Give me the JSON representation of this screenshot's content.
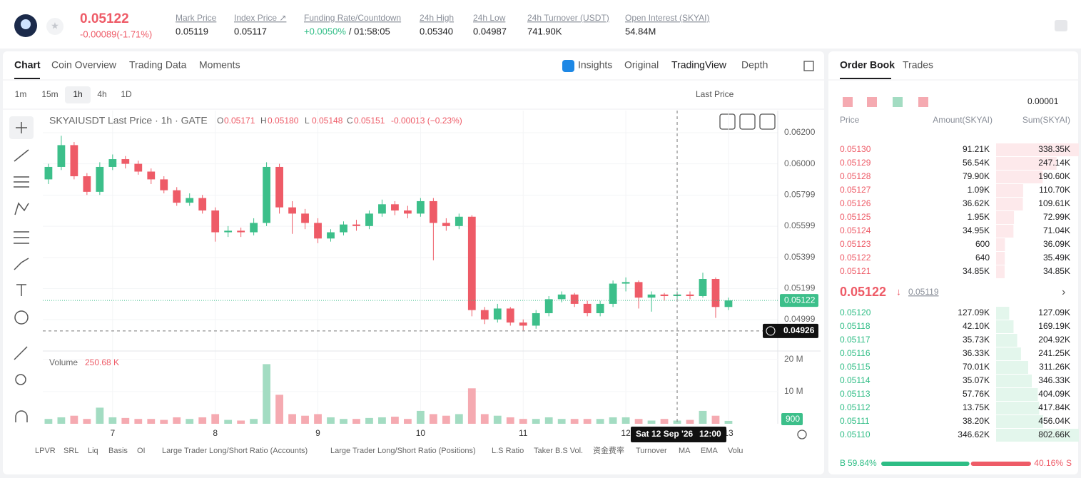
{
  "header": {
    "price": "0.05122",
    "change": "-0.00089(-1.71%)",
    "stats": [
      {
        "label": "Mark Price",
        "value": "0.05119"
      },
      {
        "label": "Index Price ↗",
        "value": "0.05117"
      },
      {
        "label": "Funding Rate/Countdown",
        "value": "+0.0050%",
        "countdown": "/ 01:58:05"
      },
      {
        "label": "24h High",
        "value": "0.05340"
      },
      {
        "label": "24h Low",
        "value": "0.04987"
      },
      {
        "label": "24h Turnover (USDT)",
        "value": "741.90K"
      },
      {
        "label": "Open Interest (SKYAI)",
        "value": "54.84M"
      }
    ]
  },
  "chart_tabs": [
    "Chart",
    "Coin Overview",
    "Trading Data",
    "Moments"
  ],
  "view_tabs": [
    "Insights",
    "Original",
    "TradingView",
    "Depth"
  ],
  "intervals": [
    "1m",
    "15m",
    "1h",
    "4h",
    "1D"
  ],
  "price_type": "Last Price",
  "indicators": [
    "LPVR",
    "SRL",
    "Liq",
    "Basis",
    "OI",
    "Large Trader Long/Short Ratio (Accounts)",
    "Large Trader Long/Short Ratio (Positions)",
    "L.S Ratio",
    "Taker B.S Vol.",
    "资金费率",
    "Turnover",
    "MA",
    "EMA",
    "Volu"
  ],
  "chart_data": {
    "type": "candlestick",
    "title": "SKYAIUSDT Last Price · 1h · GATE",
    "legend": [
      {
        "key": "O",
        "value": "0.05171"
      },
      {
        "key": "H",
        "value": "0.05180"
      },
      {
        "key": "L",
        "value": "0.05148"
      },
      {
        "key": "C",
        "value": "0.05151"
      }
    ],
    "legend_change": "-0.00013 (−0.23%)",
    "up_color": "#3cbf8a",
    "down_color": "#ee5b67",
    "up_volume_color": "#a3dcc2",
    "down_volume_color": "#f5aab1",
    "xlim": [
      6.32,
      13.48
    ],
    "xticks": [
      7,
      8,
      9,
      10,
      11,
      12,
      13
    ],
    "ylim": [
      0.04797,
      0.06342
    ],
    "yticks": [
      {
        "value": 0.062,
        "label": "0.06200"
      },
      {
        "value": 0.06,
        "label": "0.06000"
      },
      {
        "value": 0.05799,
        "label": "0.05799"
      },
      {
        "value": 0.05599,
        "label": "0.05599"
      },
      {
        "value": 0.05399,
        "label": "0.05399"
      },
      {
        "value": 0.05199,
        "label": "0.05199"
      },
      {
        "value": 0.04999,
        "label": "0.04999"
      }
    ],
    "x": [
      6.375,
      6.5,
      6.625,
      6.75,
      6.875,
      7,
      7.125,
      7.25,
      7.375,
      7.5,
      7.625,
      7.75,
      7.875,
      8,
      8.125,
      8.25,
      8.375,
      8.5,
      8.625,
      8.75,
      8.875,
      9,
      9.125,
      9.25,
      9.375,
      9.5,
      9.625,
      9.75,
      9.875,
      10,
      10.125,
      10.25,
      10.375,
      10.5,
      10.625,
      10.75,
      10.875,
      11,
      11.125,
      11.25,
      11.375,
      11.5,
      11.625,
      11.75,
      11.875,
      12,
      12.125,
      12.25,
      12.375,
      12.5,
      12.625,
      12.75,
      12.875,
      13
    ],
    "open": [
      0.059,
      0.0598,
      0.0612,
      0.0592,
      0.0582,
      0.0598,
      0.0603,
      0.06,
      0.0595,
      0.059,
      0.0583,
      0.0575,
      0.0578,
      0.057,
      0.0556,
      0.0557,
      0.0556,
      0.0562,
      0.0598,
      0.0572,
      0.0568,
      0.0562,
      0.0552,
      0.0556,
      0.0561,
      0.056,
      0.0568,
      0.0574,
      0.057,
      0.0568,
      0.0576,
      0.0562,
      0.056,
      0.0566,
      0.0506,
      0.05,
      0.0507,
      0.0498,
      0.0496,
      0.0504,
      0.0513,
      0.0516,
      0.051,
      0.0504,
      0.051,
      0.0523,
      0.0524,
      0.0514,
      0.0516,
      0.0515,
      0.0516,
      0.0515,
      0.0526,
      0.0508
    ],
    "high": [
      0.06,
      0.0618,
      0.0614,
      0.0594,
      0.0601,
      0.0606,
      0.0605,
      0.0602,
      0.0597,
      0.0592,
      0.0585,
      0.0581,
      0.058,
      0.0572,
      0.056,
      0.0559,
      0.0565,
      0.0601,
      0.06,
      0.0576,
      0.0571,
      0.0565,
      0.0558,
      0.0563,
      0.0564,
      0.057,
      0.0577,
      0.0576,
      0.0573,
      0.0578,
      0.0578,
      0.0565,
      0.0568,
      0.0567,
      0.0508,
      0.051,
      0.0508,
      0.05,
      0.0506,
      0.0515,
      0.0518,
      0.0517,
      0.0512,
      0.0512,
      0.0525,
      0.0527,
      0.0525,
      0.0518,
      0.0517,
      0.0518,
      0.0518,
      0.053,
      0.0527,
      0.0514
    ],
    "low": [
      0.0587,
      0.0596,
      0.059,
      0.058,
      0.058,
      0.0596,
      0.0597,
      0.0593,
      0.0587,
      0.0581,
      0.0573,
      0.0573,
      0.0568,
      0.055,
      0.0553,
      0.0553,
      0.0554,
      0.056,
      0.0568,
      0.0555,
      0.0558,
      0.0549,
      0.055,
      0.0554,
      0.0557,
      0.0558,
      0.0566,
      0.0567,
      0.0565,
      0.0566,
      0.0538,
      0.0557,
      0.0558,
      0.0502,
      0.0497,
      0.0498,
      0.0496,
      0.0493,
      0.0494,
      0.0502,
      0.0511,
      0.0508,
      0.0502,
      0.0502,
      0.0508,
      0.0518,
      0.0507,
      0.0505,
      0.0512,
      0.0512,
      0.0513,
      0.0514,
      0.0501,
      0.0506
    ],
    "close": [
      0.0598,
      0.0612,
      0.0592,
      0.0582,
      0.0598,
      0.0603,
      0.06,
      0.0595,
      0.059,
      0.0583,
      0.0575,
      0.0578,
      0.057,
      0.0556,
      0.0557,
      0.0556,
      0.0562,
      0.0598,
      0.0572,
      0.0568,
      0.0562,
      0.0552,
      0.0556,
      0.0561,
      0.056,
      0.0568,
      0.0574,
      0.057,
      0.0568,
      0.0576,
      0.0562,
      0.056,
      0.0566,
      0.0506,
      0.05,
      0.0507,
      0.0498,
      0.0496,
      0.0504,
      0.0513,
      0.0516,
      0.051,
      0.0504,
      0.051,
      0.0523,
      0.0524,
      0.0514,
      0.0516,
      0.0515,
      0.0516,
      0.0515,
      0.0526,
      0.0508,
      0.05122
    ],
    "last_price": 0.05122,
    "volume_title": "Volume",
    "volume_label": "250.68 K",
    "volume_axis_label": "900",
    "volume_lim": [
      0,
      20.8
    ],
    "volume_ticks": [
      {
        "value": 20,
        "label": "20 M"
      },
      {
        "value": 10,
        "label": "10 M"
      }
    ],
    "volume": [
      1.5,
      2,
      2.5,
      1.5,
      5,
      2,
      1.8,
      1.5,
      1.5,
      1.2,
      2,
      1.5,
      2,
      3,
      1.2,
      1,
      1.5,
      18.5,
      9,
      3,
      2.5,
      3,
      2,
      1.5,
      1.5,
      1.8,
      2,
      2.2,
      1.5,
      4,
      3,
      2.5,
      3,
      11,
      3,
      2.5,
      2,
      1.5,
      1.5,
      2,
      1.5,
      1.5,
      1.5,
      1.5,
      2,
      2,
      1.5,
      1,
      1.5,
      1,
      1.2,
      4,
      2.5,
      0.9
    ],
    "crosshair": {
      "x": 12.5,
      "y": 0.04926,
      "date_label": "Sat 12 Sep '26",
      "time_label": "12:00"
    }
  },
  "order_book": {
    "tabs": [
      "Order Book",
      "Trades"
    ],
    "precision": "0.00001",
    "columns": [
      "Price",
      "Amount(SKYAI)",
      "Sum(SKYAI)"
    ],
    "asks": {
      "price": [
        "0.05130",
        "0.05129",
        "0.05128",
        "0.05127",
        "0.05126",
        "0.05125",
        "0.05124",
        "0.05123",
        "0.05122",
        "0.05121"
      ],
      "amount": [
        "91.21K",
        "56.54K",
        "79.90K",
        "1.09K",
        "36.62K",
        "1.95K",
        "34.95K",
        "600",
        "640",
        "34.85K"
      ],
      "sum": [
        338.35,
        247.14,
        190.6,
        110.7,
        109.61,
        72.99,
        71.04,
        36.09,
        35.49,
        34.85
      ],
      "sum_labels": [
        "338.35K",
        "247.14K",
        "190.60K",
        "110.70K",
        "109.61K",
        "72.99K",
        "71.04K",
        "36.09K",
        "35.49K",
        "34.85K"
      ]
    },
    "mid_price": "0.05122",
    "mark_price": "0.05119",
    "bids": {
      "price": [
        "0.05120",
        "0.05118",
        "0.05117",
        "0.05116",
        "0.05115",
        "0.05114",
        "0.05113",
        "0.05112",
        "0.05111",
        "0.05110"
      ],
      "amount": [
        "127.09K",
        "42.10K",
        "35.73K",
        "36.33K",
        "70.01K",
        "35.07K",
        "57.76K",
        "13.75K",
        "38.20K",
        "346.62K"
      ],
      "sum": [
        127.09,
        169.19,
        204.92,
        241.25,
        311.26,
        346.33,
        404.09,
        417.84,
        456.04,
        802.66
      ],
      "sum_labels": [
        "127.09K",
        "169.19K",
        "204.92K",
        "241.25K",
        "311.26K",
        "346.33K",
        "404.09K",
        "417.84K",
        "456.04K",
        "802.66K"
      ]
    },
    "ratio": {
      "buy_prefix": "B",
      "buy": 59.84,
      "buy_label": "59.84%",
      "sell": 40.16,
      "sell_label": "40.16%",
      "sell_suffix": "S"
    }
  }
}
